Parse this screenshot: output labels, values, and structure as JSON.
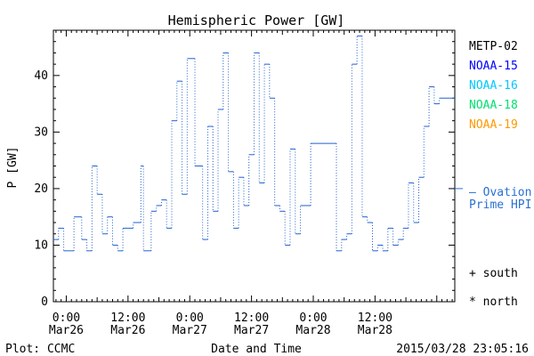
{
  "chart_data": {
    "type": "line",
    "title": "Hemispheric Power [GW]",
    "xlabel": "Date and Time",
    "ylabel": "P [GW]",
    "ylim": [
      0,
      48
    ],
    "xlim": [
      -2.5,
      75.5
    ],
    "x_unit": "hours from 2015/03/26 00:00",
    "yticks": [
      0,
      10,
      20,
      30,
      40
    ],
    "xticks": [
      {
        "x": 0,
        "time": "0:00",
        "date": "Mar26"
      },
      {
        "x": 12,
        "time": "12:00",
        "date": "Mar26"
      },
      {
        "x": 24,
        "time": "0:00",
        "date": "Mar27"
      },
      {
        "x": 36,
        "time": "12:00",
        "date": "Mar27"
      },
      {
        "x": 48,
        "time": "0:00",
        "date": "Mar28"
      },
      {
        "x": 60,
        "time": "12:00",
        "date": "Mar28"
      }
    ],
    "legend": [
      "METP-02",
      "NOAA-15",
      "NOAA-16",
      "NOAA-18",
      "NOAA-19"
    ],
    "legend_colors": [
      "#000000",
      "#0000ff",
      "#00c8ff",
      "#00e070",
      "#ff9900"
    ],
    "ovation_label": [
      "— Ovation",
      "Prime HPI"
    ],
    "ovation_value": 20,
    "ovation_color": "#2a70d0",
    "marker_legend": [
      "+ south",
      "* north"
    ],
    "footer_left": "Plot: CCMC",
    "footer_right": "2015/03/28 23:05:16",
    "series_color": "#2060d0",
    "series": [
      {
        "x": [
          -2.5,
          -1.5,
          -0.5,
          1.5,
          3.0,
          4.0,
          5.0,
          6.0,
          7.0,
          8.0,
          9.0,
          10.0,
          11.0,
          13.0,
          14.5,
          15.0,
          16.5,
          17.5,
          18.5,
          19.5,
          20.5,
          21.5,
          22.5,
          23.5,
          25.0,
          26.5,
          27.5,
          28.5,
          29.5,
          30.5,
          31.5,
          32.5,
          33.5,
          34.5,
          35.5,
          36.5,
          37.5,
          38.5,
          39.5,
          40.5,
          41.5,
          42.5,
          43.5,
          44.5,
          45.5,
          47.5,
          52.5,
          53.5,
          54.5,
          55.5,
          56.5,
          57.5,
          58.5,
          59.5,
          60.5,
          61.5,
          62.5,
          63.5,
          64.5,
          65.5,
          66.5,
          67.5,
          68.5,
          69.5,
          70.5,
          71.5,
          72.5,
          73.5,
          74.5,
          75.5
        ],
        "y": [
          11,
          13,
          9,
          15,
          11,
          9,
          24,
          19,
          12,
          15,
          10,
          9,
          13,
          14,
          24,
          9,
          16,
          17,
          18,
          13,
          32,
          39,
          19,
          43,
          24,
          11,
          31,
          16,
          34,
          44,
          23,
          13,
          22,
          17,
          26,
          44,
          21,
          42,
          36,
          17,
          16,
          10,
          27,
          12,
          17,
          28,
          9,
          11,
          12,
          42,
          47,
          15,
          14,
          9,
          10,
          9,
          13,
          10,
          11,
          13,
          21,
          14,
          22,
          31,
          38,
          35,
          36,
          36,
          36,
          36
        ]
      }
    ],
    "grid": false
  }
}
